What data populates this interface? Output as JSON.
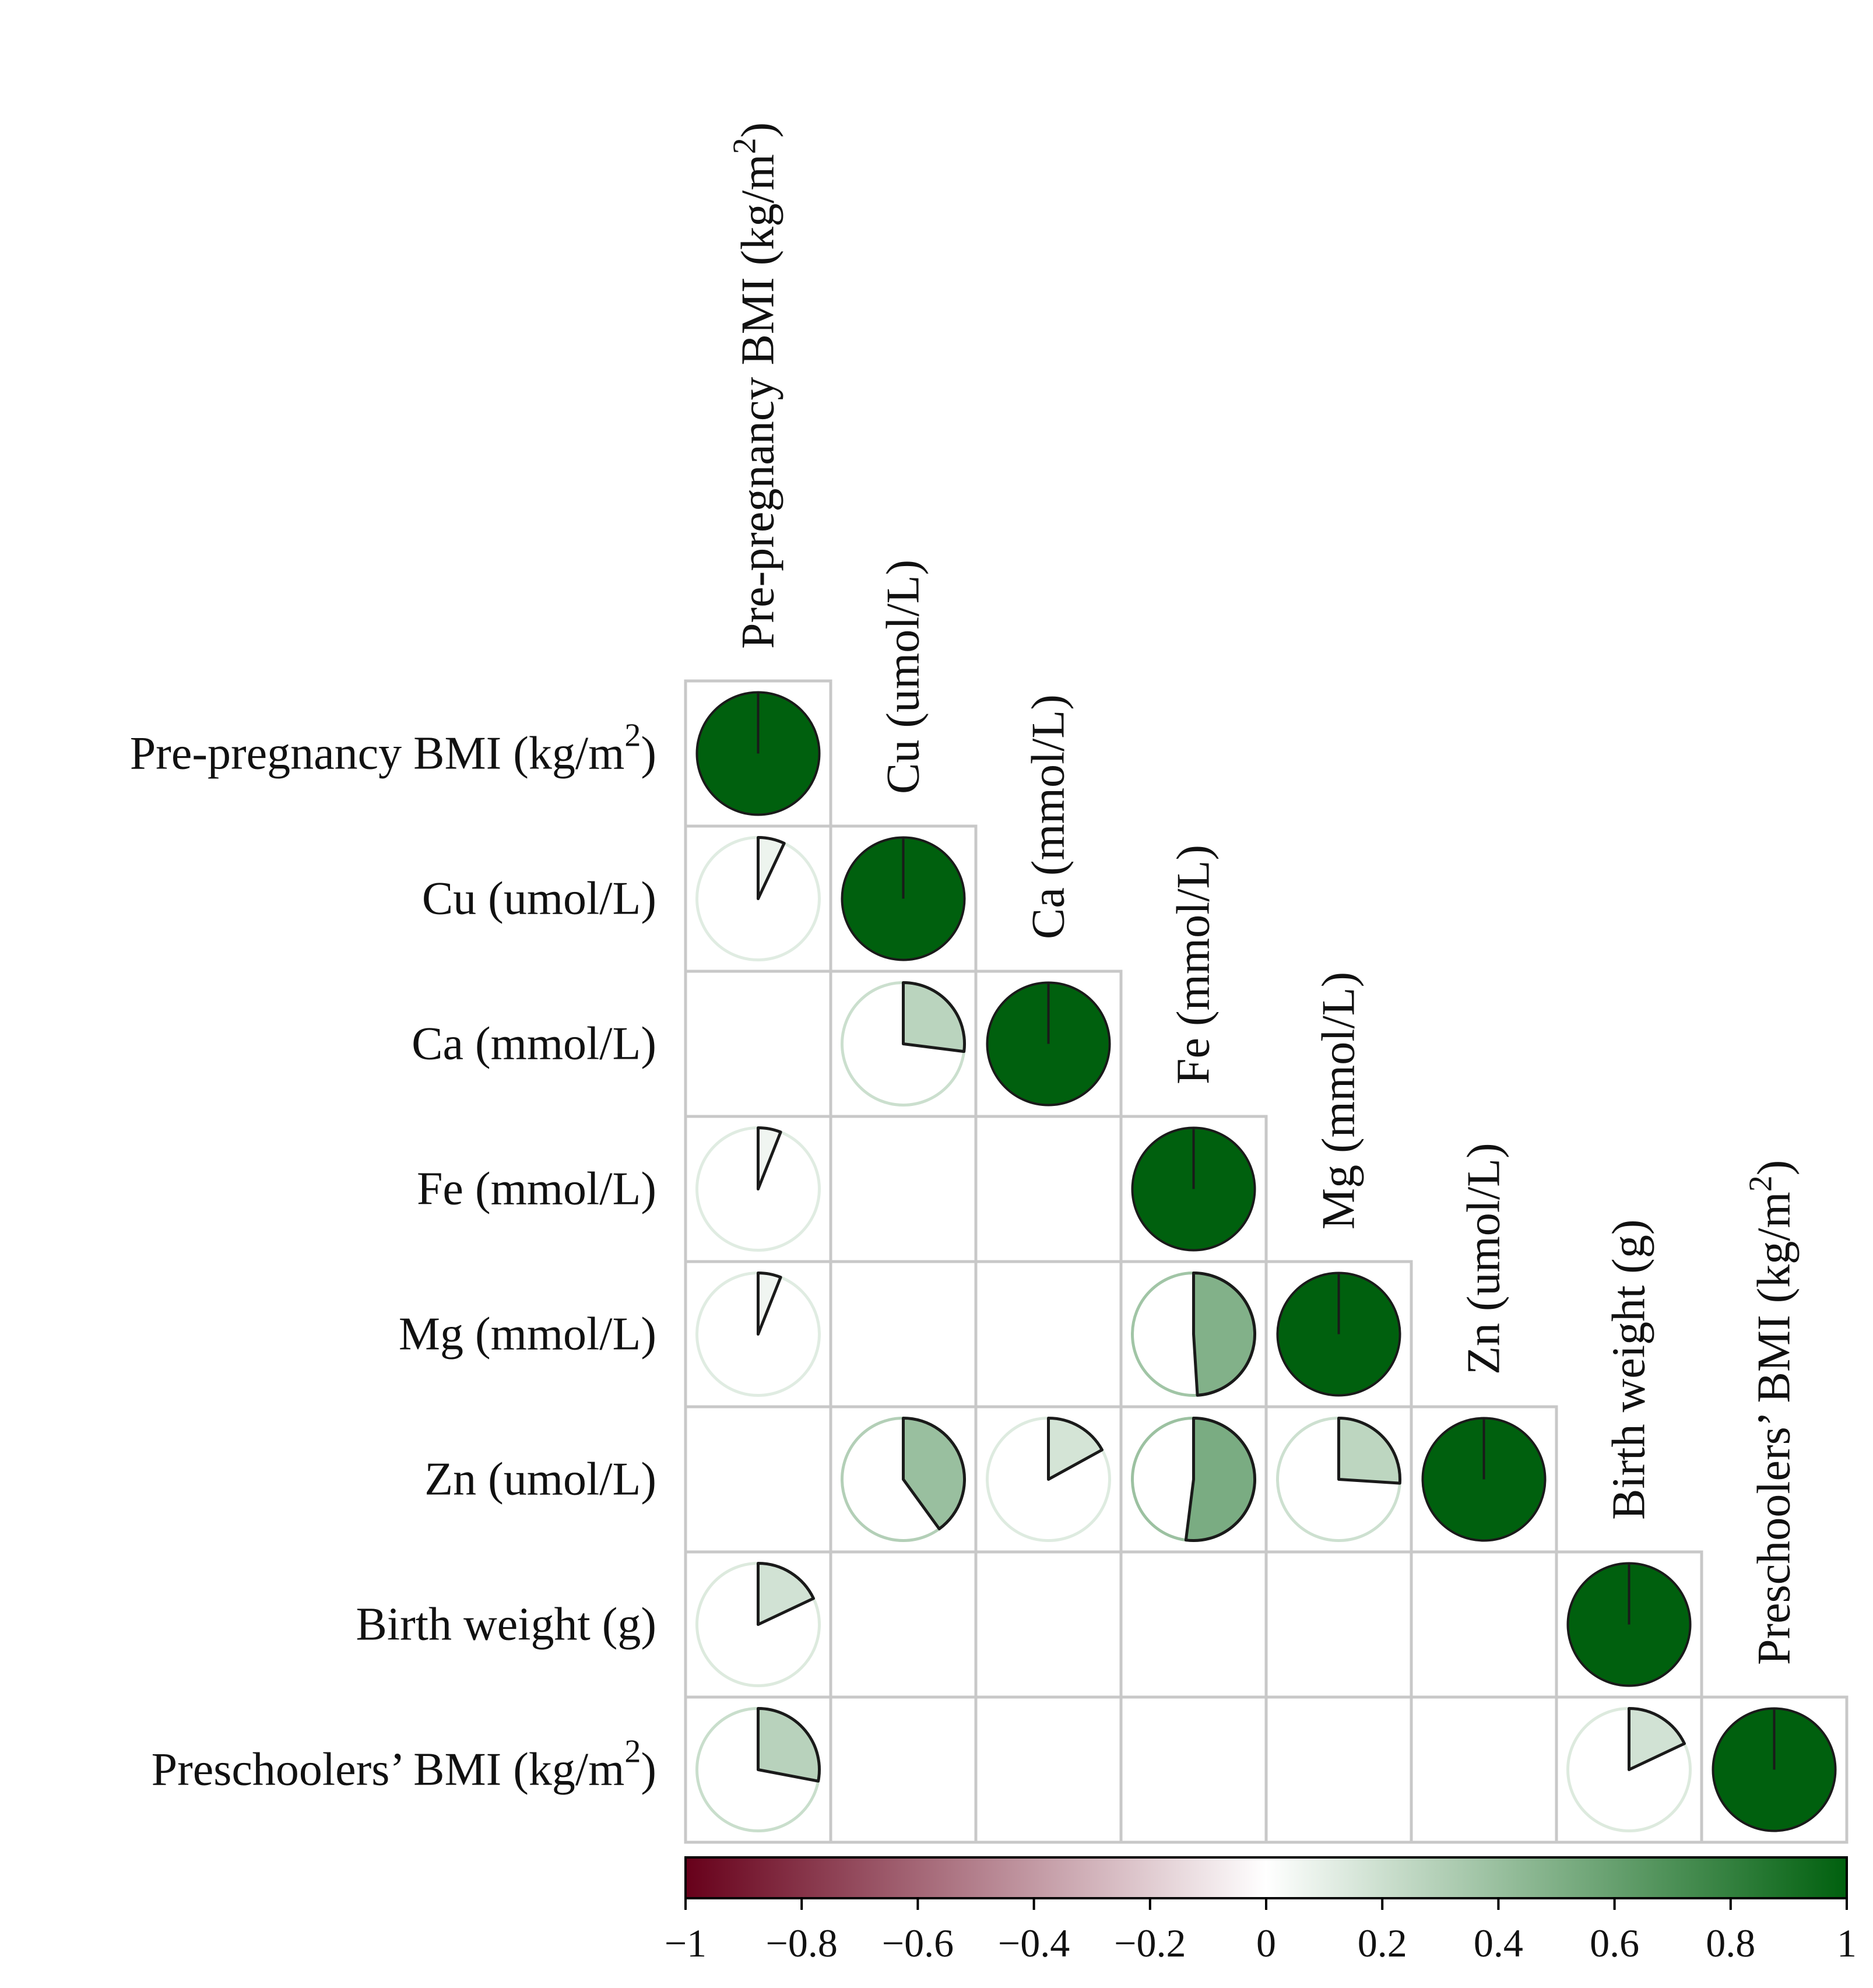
{
  "chart_data": {
    "type": "heatmap",
    "subtype": "correlation-pie-lower",
    "variables": [
      {
        "name": "Pre-pregnancy BMI (kg/m",
        "sup": "2",
        "suffix": ")"
      },
      {
        "name": "Cu (umol/L)",
        "sup": "",
        "suffix": ""
      },
      {
        "name": "Ca (mmol/L)",
        "sup": "",
        "suffix": ""
      },
      {
        "name": "Fe (mmol/L)",
        "sup": "",
        "suffix": ""
      },
      {
        "name": "Mg (mmol/L)",
        "sup": "",
        "suffix": ""
      },
      {
        "name": "Zn (umol/L)",
        "sup": "",
        "suffix": ""
      },
      {
        "name": "Birth weight (g)",
        "sup": "",
        "suffix": ""
      },
      {
        "name": "Preschoolers’ BMI (kg/m",
        "sup": "2",
        "suffix": ")"
      }
    ],
    "correlations": [
      {
        "row": 0,
        "col": 0,
        "r": 1.0
      },
      {
        "row": 1,
        "col": 0,
        "r": 0.07
      },
      {
        "row": 1,
        "col": 1,
        "r": 1.0
      },
      {
        "row": 2,
        "col": 1,
        "r": 0.27
      },
      {
        "row": 2,
        "col": 2,
        "r": 1.0
      },
      {
        "row": 3,
        "col": 0,
        "r": 0.06
      },
      {
        "row": 3,
        "col": 3,
        "r": 1.0
      },
      {
        "row": 4,
        "col": 0,
        "r": 0.06
      },
      {
        "row": 4,
        "col": 3,
        "r": 0.49
      },
      {
        "row": 4,
        "col": 4,
        "r": 1.0
      },
      {
        "row": 5,
        "col": 1,
        "r": 0.4
      },
      {
        "row": 5,
        "col": 2,
        "r": 0.17
      },
      {
        "row": 5,
        "col": 3,
        "r": 0.52
      },
      {
        "row": 5,
        "col": 4,
        "r": 0.26
      },
      {
        "row": 5,
        "col": 5,
        "r": 1.0
      },
      {
        "row": 6,
        "col": 0,
        "r": 0.18
      },
      {
        "row": 6,
        "col": 6,
        "r": 1.0
      },
      {
        "row": 7,
        "col": 0,
        "r": 0.28
      },
      {
        "row": 7,
        "col": 6,
        "r": 0.18
      },
      {
        "row": 7,
        "col": 7,
        "r": 1.0
      }
    ],
    "colorbar": {
      "range": [
        -1,
        1
      ],
      "ticks": [
        "−1",
        "−0.8",
        "−0.6",
        "−0.4",
        "−0.2",
        "0",
        "0.2",
        "0.4",
        "0.6",
        "0.8",
        "1"
      ],
      "colors": {
        "negative": "#67001a",
        "zero": "#ffffff",
        "positive": "#00600e"
      }
    },
    "colors": {
      "grid": "#c8c8c8",
      "outline": "#1a1a1a"
    }
  }
}
